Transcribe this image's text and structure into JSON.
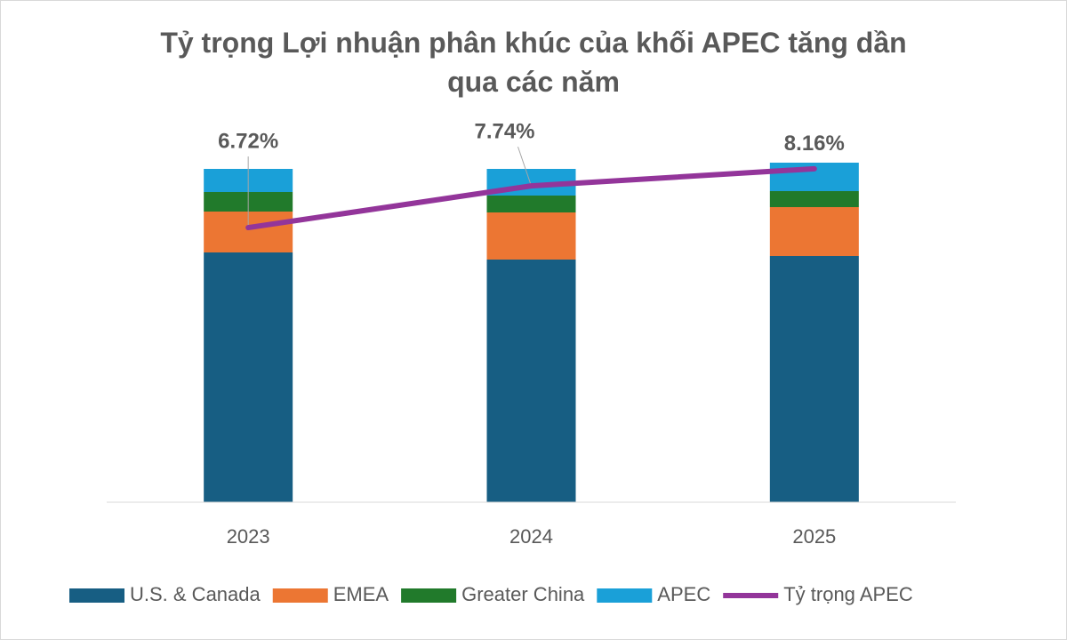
{
  "chart_data": {
    "type": "bar",
    "stacked": true,
    "title": "Tỷ trọng Lợi nhuận phân khúc của khối APEC tăng dần qua các năm",
    "categories": [
      "2023",
      "2024",
      "2025"
    ],
    "ylim": [
      0,
      400
    ],
    "y2lim": [
      0,
      8.7
    ],
    "series": [
      {
        "name": "U.S. & Canada",
        "color": "#175e83",
        "values": [
          281,
          273,
          277
        ]
      },
      {
        "name": "EMEA",
        "color": "#ec7633",
        "values": [
          46,
          53,
          55
        ]
      },
      {
        "name": "Greater China",
        "color": "#217a2b",
        "values": [
          22,
          19,
          18
        ]
      },
      {
        "name": "APEC",
        "color": "#1aa0d8",
        "values": [
          26,
          30,
          32
        ]
      },
      {
        "name": "Tỷ trọng APEC",
        "type": "line",
        "axis": "y2",
        "color": "#93359a",
        "values": [
          6.72,
          7.74,
          8.16
        ],
        "value_labels": [
          "6.72%",
          "7.74%",
          "8.16%"
        ]
      }
    ],
    "legend": "bottom"
  }
}
